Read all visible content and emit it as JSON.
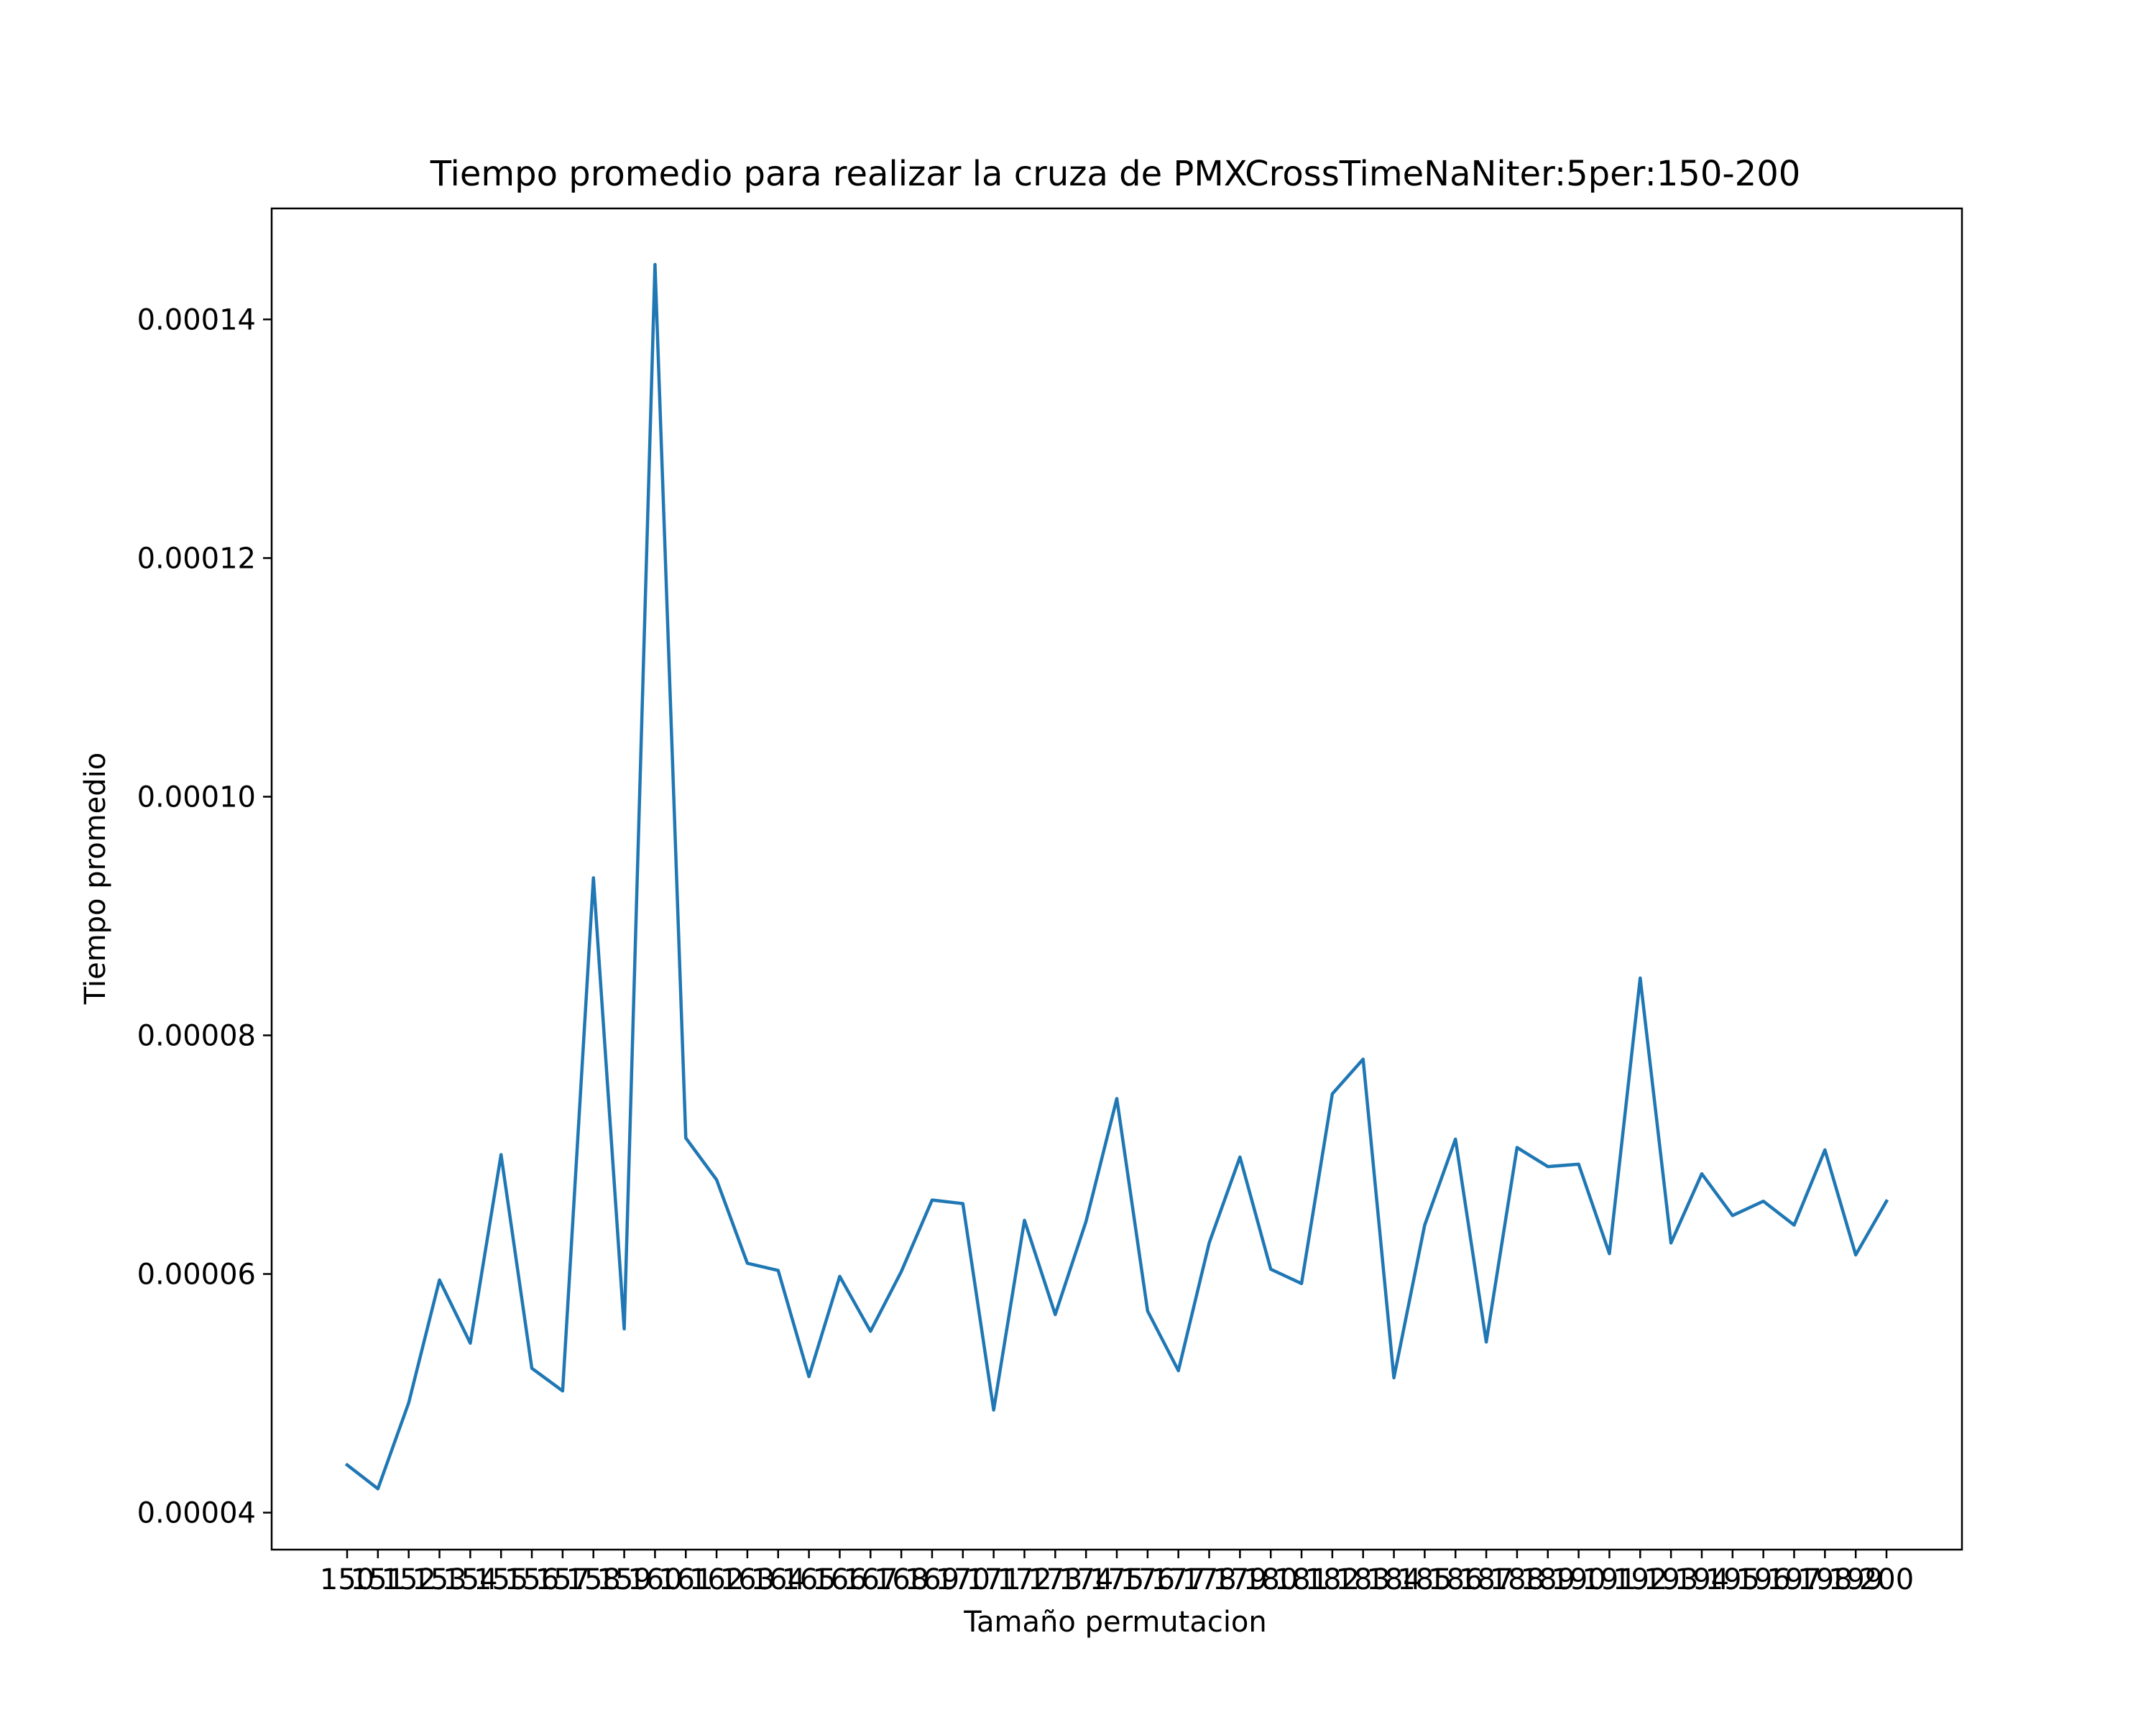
{
  "chart_data": {
    "type": "line",
    "title": "Tiempo promedio para realizar la cruza de PMXCrossTimeNaNiter:5per:150-200",
    "xlabel": "Tamaño permutacion",
    "ylabel": "Tiempo promedio",
    "categories": [
      "150",
      "151",
      "152",
      "153",
      "154",
      "155",
      "156",
      "157",
      "158",
      "159",
      "160",
      "161",
      "162",
      "163",
      "164",
      "165",
      "166",
      "167",
      "168",
      "169",
      "170",
      "171",
      "172",
      "173",
      "174",
      "175",
      "176",
      "177",
      "178",
      "179",
      "180",
      "181",
      "182",
      "183",
      "184",
      "185",
      "186",
      "187",
      "188",
      "189",
      "190",
      "191",
      "192",
      "193",
      "194",
      "195",
      "196",
      "197",
      "198",
      "199",
      "200"
    ],
    "series": [
      {
        "color": "#1f77b4",
        "values": [
          4.4e-05,
          4.2e-05,
          4.92e-05,
          5.95e-05,
          5.42e-05,
          7e-05,
          5.21e-05,
          5.02e-05,
          9.32e-05,
          5.54e-05,
          0.0001446,
          7.14e-05,
          6.79e-05,
          6.09e-05,
          6.03e-05,
          5.14e-05,
          5.98e-05,
          5.52e-05,
          6.02e-05,
          6.62e-05,
          6.59e-05,
          4.86e-05,
          6.45e-05,
          5.66e-05,
          6.44e-05,
          7.47e-05,
          5.69e-05,
          5.19e-05,
          6.26e-05,
          6.98e-05,
          6.04e-05,
          5.92e-05,
          7.51e-05,
          7.8e-05,
          5.13e-05,
          6.41e-05,
          7.13e-05,
          5.43e-05,
          7.06e-05,
          6.9e-05,
          6.92e-05,
          6.17e-05,
          8.48e-05,
          6.26e-05,
          6.84e-05,
          6.49e-05,
          6.61e-05,
          6.41e-05,
          7.04e-05,
          6.16e-05,
          6.61e-05
        ]
      }
    ],
    "yticks": [
      "0.00004",
      "0.00006",
      "0.00008",
      "0.00010",
      "0.00012",
      "0.00014"
    ],
    "ylim": [
      3.69e-05,
      0.0001493
    ],
    "grid": false,
    "legend": "none"
  }
}
